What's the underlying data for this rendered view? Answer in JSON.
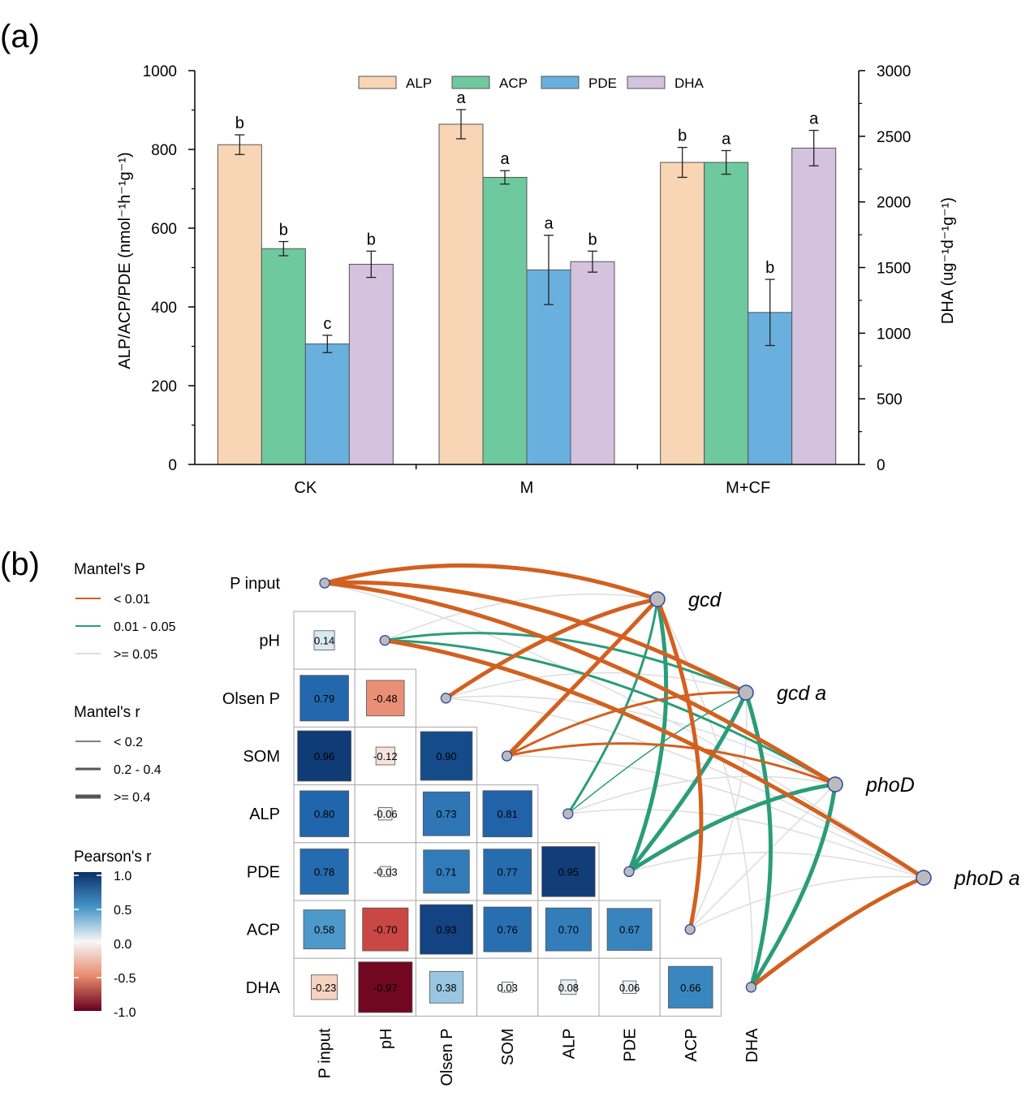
{
  "panel_a_label": "(a)",
  "panel_b_label": "(b)",
  "chart_data": [
    {
      "type": "bar",
      "title": "",
      "categories": [
        "CK",
        "M",
        "M+CF"
      ],
      "ylabel": "ALP/ACP/PDE (nmol⁻¹h⁻¹g⁻¹)",
      "y2label": "DHA (ug⁻¹d⁻¹g⁻¹)",
      "ylim": [
        0,
        1000
      ],
      "y2lim": [
        0,
        3000
      ],
      "yticks": [
        0,
        200,
        400,
        600,
        800,
        1000
      ],
      "y2ticks": [
        0,
        500,
        1000,
        1500,
        2000,
        2500,
        3000
      ],
      "legend_position": "top-center",
      "series": [
        {
          "name": "ALP",
          "axis": "left",
          "color": "#f8d5b4",
          "values": [
            812,
            864,
            767
          ],
          "errors": [
            25,
            37,
            38
          ],
          "labels": [
            "b",
            "a",
            "b"
          ]
        },
        {
          "name": "ACP",
          "axis": "left",
          "color": "#6fc99f",
          "values": [
            548,
            729,
            767
          ],
          "errors": [
            18,
            17,
            30
          ],
          "labels": [
            "b",
            "a",
            "a"
          ]
        },
        {
          "name": "PDE",
          "axis": "left",
          "color": "#6ab0de",
          "values": [
            306,
            494,
            386
          ],
          "errors": [
            22,
            88,
            84
          ],
          "labels": [
            "c",
            "a",
            "b"
          ]
        },
        {
          "name": "DHA",
          "axis": "right",
          "color": "#d4c2de",
          "values": [
            1525,
            1545,
            2410
          ],
          "errors": [
            100,
            80,
            135
          ],
          "labels": [
            "b",
            "b",
            "a"
          ]
        }
      ]
    },
    {
      "type": "heatmap",
      "variables": [
        "P  input",
        "pH",
        "Olsen  P",
        "SOM",
        "ALP",
        "PDE",
        "ACP",
        "DHA"
      ],
      "x_labels": [
        "P  input",
        "pH",
        "Olsen  P",
        "SOM",
        "ALP",
        "PDE",
        "ACP",
        "DHA"
      ],
      "y_labels": [
        "pH",
        "Olsen  P",
        "SOM",
        "ALP",
        "PDE",
        "ACP",
        "DHA"
      ],
      "correlations": [
        {
          "row": "pH",
          "col": "P  input",
          "value": 0.14,
          "label": "0.14"
        },
        {
          "row": "Olsen  P",
          "col": "P  input",
          "value": 0.79,
          "label": "0.79"
        },
        {
          "row": "Olsen  P",
          "col": "pH",
          "value": -0.48,
          "label": "-0.48"
        },
        {
          "row": "SOM",
          "col": "P  input",
          "value": 0.96,
          "label": "0.96"
        },
        {
          "row": "SOM",
          "col": "pH",
          "value": -0.12,
          "label": "-0.12"
        },
        {
          "row": "SOM",
          "col": "Olsen  P",
          "value": 0.9,
          "label": "0.90"
        },
        {
          "row": "ALP",
          "col": "P  input",
          "value": 0.8,
          "label": "0.80"
        },
        {
          "row": "ALP",
          "col": "pH",
          "value": -0.06,
          "label": "-0.06"
        },
        {
          "row": "ALP",
          "col": "Olsen  P",
          "value": 0.73,
          "label": "0.73"
        },
        {
          "row": "ALP",
          "col": "SOM",
          "value": 0.81,
          "label": "0.81"
        },
        {
          "row": "PDE",
          "col": "P  input",
          "value": 0.78,
          "label": "0.78"
        },
        {
          "row": "PDE",
          "col": "pH",
          "value": -0.03,
          "label": "-0.03"
        },
        {
          "row": "PDE",
          "col": "Olsen  P",
          "value": 0.71,
          "label": "0.71"
        },
        {
          "row": "PDE",
          "col": "SOM",
          "value": 0.77,
          "label": "0.77"
        },
        {
          "row": "PDE",
          "col": "ALP",
          "value": 0.95,
          "label": "0.95"
        },
        {
          "row": "ACP",
          "col": "P  input",
          "value": 0.58,
          "label": "0.58"
        },
        {
          "row": "ACP",
          "col": "pH",
          "value": -0.7,
          "label": "-0.70"
        },
        {
          "row": "ACP",
          "col": "Olsen  P",
          "value": 0.93,
          "label": "0.93"
        },
        {
          "row": "ACP",
          "col": "SOM",
          "value": 0.76,
          "label": "0.76"
        },
        {
          "row": "ACP",
          "col": "ALP",
          "value": 0.7,
          "label": "0.70"
        },
        {
          "row": "ACP",
          "col": "PDE",
          "value": 0.67,
          "label": "0.67"
        },
        {
          "row": "DHA",
          "col": "P  input",
          "value": -0.23,
          "label": "-0.23"
        },
        {
          "row": "DHA",
          "col": "pH",
          "value": -0.97,
          "label": "-0.97"
        },
        {
          "row": "DHA",
          "col": "Olsen  P",
          "value": 0.38,
          "label": "0.38"
        },
        {
          "row": "DHA",
          "col": "SOM",
          "value": 0.03,
          "label": "0.03"
        },
        {
          "row": "DHA",
          "col": "ALP",
          "value": 0.08,
          "label": "0.08"
        },
        {
          "row": "DHA",
          "col": "PDE",
          "value": 0.06,
          "label": "0.06"
        },
        {
          "row": "DHA",
          "col": "ACP",
          "value": 0.66,
          "label": "0.66"
        }
      ],
      "genes": [
        "gcd",
        "gcd  a",
        "phoD",
        "phoD  a"
      ],
      "mantel_links": [
        {
          "gene": "gcd",
          "var": "P  input",
          "p": "<0.01",
          "r": ">=0.4"
        },
        {
          "gene": "gcd",
          "var": "pH",
          "p": ">=0.05",
          "r": "<0.2"
        },
        {
          "gene": "gcd",
          "var": "Olsen  P",
          "p": "<0.01",
          "r": ">=0.4"
        },
        {
          "gene": "gcd",
          "var": "SOM",
          "p": "<0.01",
          "r": ">=0.4"
        },
        {
          "gene": "gcd",
          "var": "ALP",
          "p": "0.01-0.05",
          "r": "0.2-0.4"
        },
        {
          "gene": "gcd",
          "var": "PDE",
          "p": "0.01-0.05",
          "r": ">=0.4"
        },
        {
          "gene": "gcd",
          "var": "ACP",
          "p": "<0.01",
          "r": ">=0.4"
        },
        {
          "gene": "gcd",
          "var": "DHA",
          "p": ">=0.05",
          "r": "<0.2"
        },
        {
          "gene": "gcd  a",
          "var": "P  input",
          "p": "<0.01",
          "r": ">=0.4"
        },
        {
          "gene": "gcd  a",
          "var": "pH",
          "p": "0.01-0.05",
          "r": "0.2-0.4"
        },
        {
          "gene": "gcd  a",
          "var": "Olsen  P",
          "p": ">=0.05",
          "r": "<0.2"
        },
        {
          "gene": "gcd  a",
          "var": "SOM",
          "p": "<0.01",
          "r": "0.2-0.4"
        },
        {
          "gene": "gcd  a",
          "var": "ALP",
          "p": "0.01-0.05",
          "r": "<0.2"
        },
        {
          "gene": "gcd  a",
          "var": "PDE",
          "p": "0.01-0.05",
          "r": ">=0.4"
        },
        {
          "gene": "gcd  a",
          "var": "ACP",
          "p": ">=0.05",
          "r": "<0.2"
        },
        {
          "gene": "gcd  a",
          "var": "DHA",
          "p": "0.01-0.05",
          "r": ">=0.4"
        },
        {
          "gene": "phoD",
          "var": "P  input",
          "p": "<0.01",
          "r": ">=0.4"
        },
        {
          "gene": "phoD",
          "var": "pH",
          "p": "0.01-0.05",
          "r": "0.2-0.4"
        },
        {
          "gene": "phoD",
          "var": "Olsen  P",
          "p": ">=0.05",
          "r": "<0.2"
        },
        {
          "gene": "phoD",
          "var": "SOM",
          "p": "<0.01",
          "r": "0.2-0.4"
        },
        {
          "gene": "phoD",
          "var": "ALP",
          "p": ">=0.05",
          "r": "<0.2"
        },
        {
          "gene": "phoD",
          "var": "PDE",
          "p": "0.01-0.05",
          "r": ">=0.4"
        },
        {
          "gene": "phoD",
          "var": "ACP",
          "p": ">=0.05",
          "r": "<0.2"
        },
        {
          "gene": "phoD",
          "var": "DHA",
          "p": "0.01-0.05",
          "r": ">=0.4"
        },
        {
          "gene": "phoD  a",
          "var": "P  input",
          "p": ">=0.05",
          "r": "<0.2"
        },
        {
          "gene": "phoD  a",
          "var": "pH",
          "p": "<0.01",
          "r": ">=0.4"
        },
        {
          "gene": "phoD  a",
          "var": "Olsen  P",
          "p": ">=0.05",
          "r": "<0.2"
        },
        {
          "gene": "phoD  a",
          "var": "SOM",
          "p": ">=0.05",
          "r": "<0.2"
        },
        {
          "gene": "phoD  a",
          "var": "ALP",
          "p": ">=0.05",
          "r": "<0.2"
        },
        {
          "gene": "phoD  a",
          "var": "PDE",
          "p": ">=0.05",
          "r": "<0.2"
        },
        {
          "gene": "phoD  a",
          "var": "ACP",
          "p": ">=0.05",
          "r": "<0.2"
        },
        {
          "gene": "phoD  a",
          "var": "DHA",
          "p": "<0.01",
          "r": ">=0.4"
        }
      ],
      "legend": {
        "mantel_p_title": "Mantel's P",
        "mantel_p_items": [
          {
            "label": "< 0.01",
            "color": "#d2601f"
          },
          {
            "label": "0.01 - 0.05",
            "color": "#2a9d78"
          },
          {
            "label": ">= 0.05",
            "color": "#dddddd"
          }
        ],
        "mantel_r_title": "Mantel's r",
        "mantel_r_items": [
          {
            "label": "< 0.2"
          },
          {
            "label": "0.2 - 0.4"
          },
          {
            "label": ">= 0.4"
          }
        ],
        "pearson_title": "Pearson's r",
        "pearson_ticks": [
          "1.0",
          "0.5",
          "0.0",
          "-0.5",
          "-1.0"
        ]
      }
    }
  ]
}
